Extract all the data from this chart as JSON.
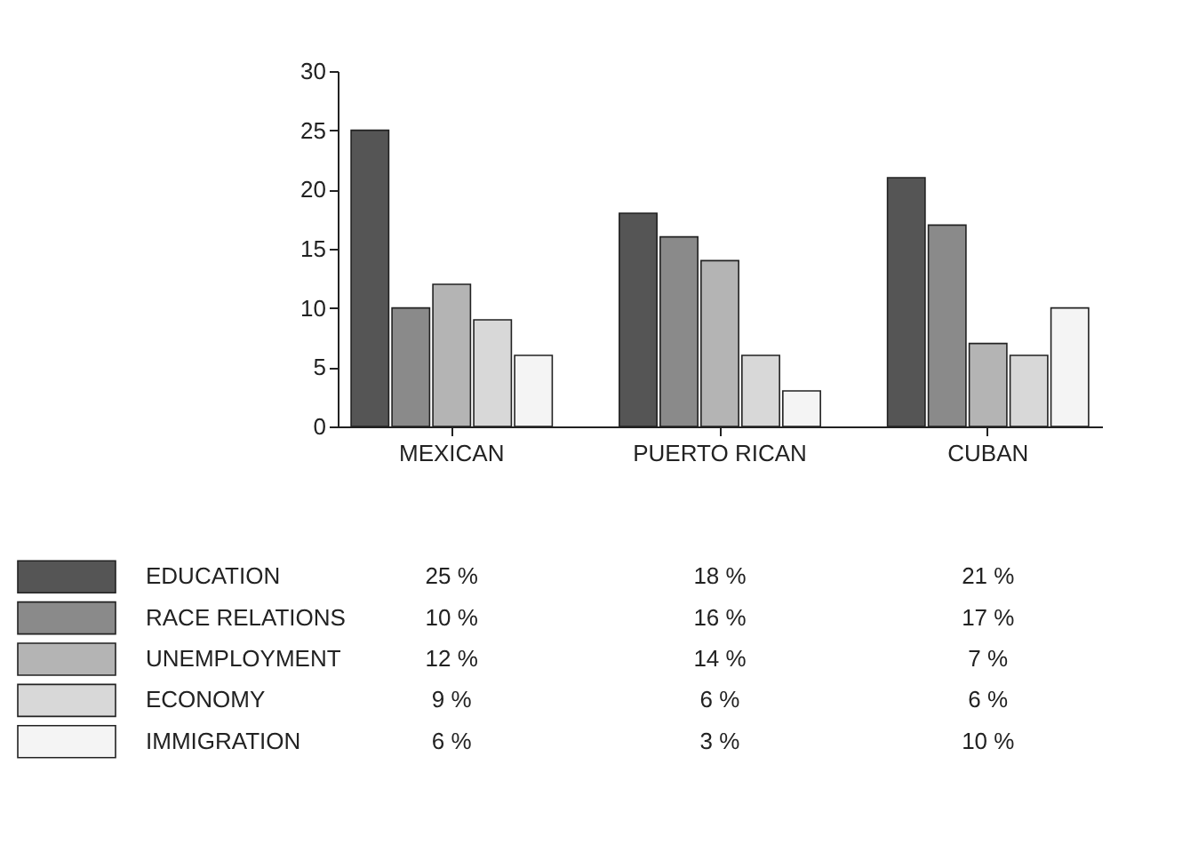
{
  "chart_data": {
    "type": "bar",
    "categories": [
      "MEXICAN",
      "PUERTO RICAN",
      "CUBAN"
    ],
    "series": [
      {
        "name": "EDUCATION",
        "color": "#555555",
        "values": [
          25,
          18,
          21
        ],
        "value_labels": [
          "25 %",
          "18 %",
          "21 %"
        ]
      },
      {
        "name": "RACE RELATIONS",
        "color": "#8a8a8a",
        "values": [
          10,
          16,
          17
        ],
        "value_labels": [
          "10 %",
          "16 %",
          "17 %"
        ]
      },
      {
        "name": "UNEMPLOYMENT",
        "color": "#b4b4b4",
        "values": [
          12,
          14,
          7
        ],
        "value_labels": [
          "12 %",
          "14 %",
          "7 %"
        ]
      },
      {
        "name": "ECONOMY",
        "color": "#d8d8d8",
        "values": [
          9,
          6,
          6
        ],
        "value_labels": [
          "9 %",
          "6 %",
          "6 %"
        ]
      },
      {
        "name": "IMMIGRATION",
        "color": "#f4f4f4",
        "values": [
          6,
          3,
          10
        ],
        "value_labels": [
          "6 %",
          "3 %",
          "10 %"
        ]
      }
    ],
    "ylim": [
      0,
      30
    ],
    "yticks": [
      0,
      5,
      10,
      15,
      20,
      25,
      30
    ],
    "grid": false,
    "legend": "bottom"
  }
}
